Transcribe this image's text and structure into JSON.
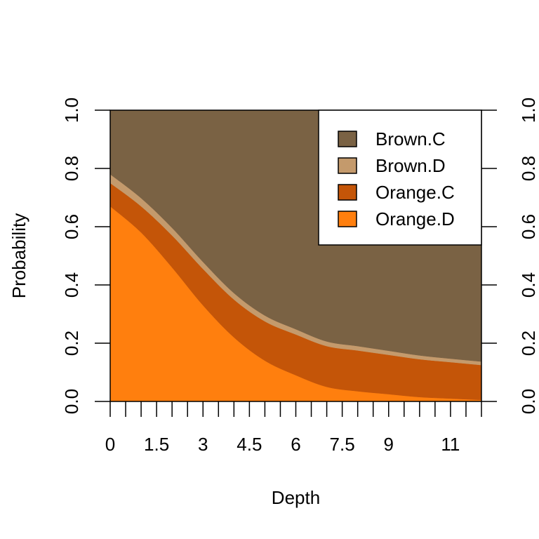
{
  "chart_data": {
    "type": "area",
    "stacked": true,
    "xlabel": "Depth",
    "ylabel": "Probability",
    "xlim": [
      0,
      12
    ],
    "ylim": [
      0,
      1
    ],
    "x_tick_labels": [
      "0",
      "1.5",
      "3",
      "4.5",
      "6",
      "7.5",
      "9",
      "11"
    ],
    "x_tick_label_values": [
      0,
      1.5,
      3,
      4.5,
      6,
      7.5,
      9,
      11
    ],
    "x_minor_ticks": [
      0,
      0.5,
      1,
      1.5,
      2,
      2.5,
      3,
      3.5,
      4,
      4.5,
      5,
      5.5,
      6,
      6.5,
      7,
      7.5,
      8,
      8.5,
      9,
      9.5,
      10,
      10.5,
      11,
      11.5,
      12
    ],
    "y_ticks": [
      0.0,
      0.2,
      0.4,
      0.6,
      0.8,
      1.0
    ],
    "y_tick_labels": [
      "0.0",
      "0.2",
      "0.4",
      "0.6",
      "0.8",
      "1.0"
    ],
    "right_axis": true,
    "grid": false,
    "legend_position": "top-right",
    "x": [
      0,
      1,
      2,
      3,
      4,
      5,
      6,
      7,
      8,
      9,
      10,
      11,
      12
    ],
    "series": [
      {
        "name": "Orange.D",
        "color": "#FF7F0E",
        "values": [
          0.67,
          0.58,
          0.46,
          0.33,
          0.22,
          0.14,
          0.09,
          0.05,
          0.035,
          0.025,
          0.015,
          0.01,
          0.005
        ]
      },
      {
        "name": "Orange.C",
        "color": "#C45508",
        "values": [
          0.08,
          0.09,
          0.11,
          0.125,
          0.13,
          0.135,
          0.14,
          0.14,
          0.14,
          0.135,
          0.13,
          0.125,
          0.12
        ]
      },
      {
        "name": "Brown.D",
        "color": "#C49A6C",
        "values": [
          0.03,
          0.028,
          0.026,
          0.024,
          0.022,
          0.02,
          0.018,
          0.016,
          0.015,
          0.014,
          0.013,
          0.012,
          0.012
        ]
      },
      {
        "name": "Brown.C",
        "color": "#7A6244",
        "values": [
          0.22,
          0.302,
          0.404,
          0.521,
          0.628,
          0.705,
          0.752,
          0.794,
          0.81,
          0.826,
          0.842,
          0.853,
          0.863
        ]
      }
    ],
    "legend_order": [
      "Brown.C",
      "Brown.D",
      "Orange.C",
      "Orange.D"
    ]
  }
}
